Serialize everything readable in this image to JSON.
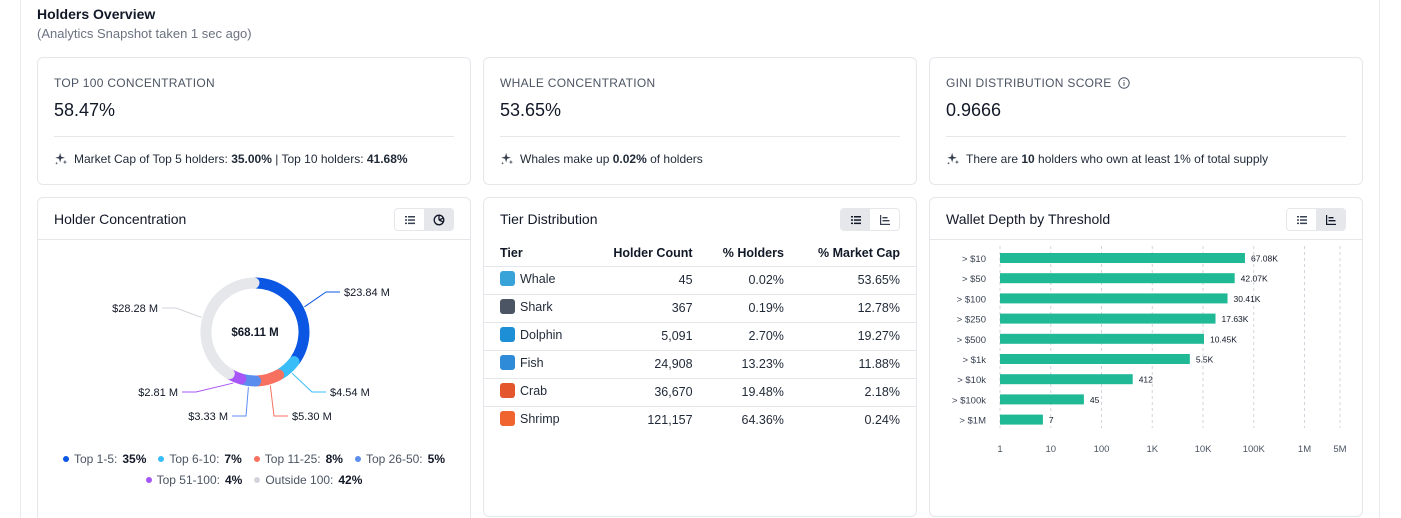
{
  "header": {
    "title": "Holders Overview",
    "subtitle": "(Analytics Snapshot taken 1 sec ago)"
  },
  "stats": {
    "top100": {
      "label": "TOP 100 CONCENTRATION",
      "value": "58.47%",
      "note_prefix": "Market Cap of Top 5 holders: ",
      "note_top5": "35.00%",
      "note_mid": " | Top 10 holders: ",
      "note_top10": "41.68%"
    },
    "whale": {
      "label": "WHALE CONCENTRATION",
      "value": "53.65%",
      "note_prefix": "Whales make up ",
      "note_value": "0.02%",
      "note_suffix": " of holders"
    },
    "gini": {
      "label": "GINI DISTRIBUTION SCORE",
      "value": "0.9666",
      "note_prefix": "There are ",
      "note_value": "10",
      "note_suffix": " holders who own at least 1% of total supply"
    }
  },
  "concentration": {
    "title": "Holder Concentration",
    "center_label": "$68.11 M",
    "segments": [
      {
        "label": "Top 1-5:",
        "pct": "35%",
        "share": 35,
        "value_label": "$23.84 M",
        "color": "#0b57e3"
      },
      {
        "label": "Top 6-10:",
        "pct": "7%",
        "share": 6.67,
        "value_label": "$4.54 M",
        "color": "#38bdf8"
      },
      {
        "label": "Top 11-25:",
        "pct": "8%",
        "share": 7.78,
        "value_label": "$5.30 M",
        "color": "#f87060"
      },
      {
        "label": "Top 26-50:",
        "pct": "5%",
        "share": 4.89,
        "value_label": "$3.33 M",
        "color": "#5b8def"
      },
      {
        "label": "Top 51-100:",
        "pct": "4%",
        "share": 4.13,
        "value_label": "$2.81 M",
        "color": "#a855f7"
      },
      {
        "label": "Outside 100:",
        "pct": "42%",
        "share": 41.53,
        "value_label": "$28.28 M",
        "color": "#e5e7eb"
      }
    ]
  },
  "tiers": {
    "title": "Tier Distribution",
    "columns": [
      "Tier",
      "Holder Count",
      "% Holders",
      "% Market Cap"
    ],
    "rows": [
      {
        "name": "Whale",
        "count": "45",
        "holders": "0.02%",
        "mcap": "53.65%",
        "icon": "whale-icon",
        "color": "#38a3d8"
      },
      {
        "name": "Shark",
        "count": "367",
        "holders": "0.19%",
        "mcap": "12.78%",
        "icon": "shark-icon",
        "color": "#4b5563"
      },
      {
        "name": "Dolphin",
        "count": "5,091",
        "holders": "2.70%",
        "mcap": "19.27%",
        "icon": "dolphin-icon",
        "color": "#1d8fd6"
      },
      {
        "name": "Fish",
        "count": "24,908",
        "holders": "13.23%",
        "mcap": "11.88%",
        "icon": "fish-icon",
        "color": "#2f8bd8"
      },
      {
        "name": "Crab",
        "count": "36,670",
        "holders": "19.48%",
        "mcap": "2.18%",
        "icon": "crab-icon",
        "color": "#e4572e"
      },
      {
        "name": "Shrimp",
        "count": "121,157",
        "holders": "64.36%",
        "mcap": "0.24%",
        "icon": "shrimp-icon",
        "color": "#f0652f"
      }
    ]
  },
  "depth": {
    "title": "Wallet Depth by Threshold"
  },
  "chart_data": {
    "type": "bar",
    "orientation": "horizontal",
    "x_scale": "log",
    "bar_color": "#1fb996",
    "categories": [
      "> $10",
      "> $50",
      "> $100",
      "> $250",
      "> $500",
      "> $1k",
      "> $10k",
      "> $100k",
      "> $1M"
    ],
    "values": [
      67080,
      42070,
      30410,
      17630,
      10450,
      5500,
      412,
      45,
      7
    ],
    "data_labels": [
      "67.08K",
      "42.07K",
      "30.41K",
      "17.63K",
      "10.45K",
      "5.5K",
      "412",
      "45",
      "7"
    ],
    "x_ticks": [
      1,
      10,
      100,
      1000,
      10000,
      100000,
      1000000,
      5000000
    ],
    "x_tick_labels": [
      "1",
      "10",
      "100",
      "1K",
      "10K",
      "100K",
      "1M",
      "5M"
    ],
    "xlim": [
      1,
      5000000
    ],
    "grid": true
  }
}
